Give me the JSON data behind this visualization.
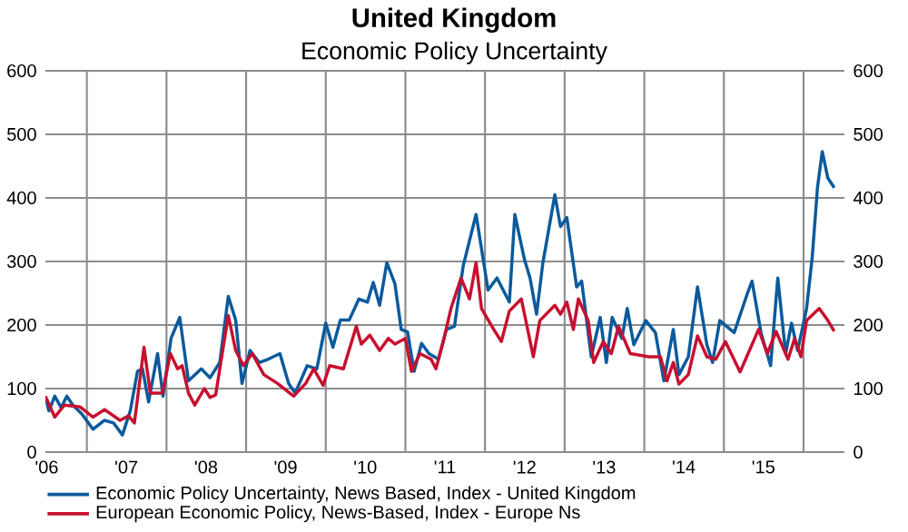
{
  "chart_data": {
    "type": "line",
    "title": "United Kingdom",
    "subtitle": "Economic Policy Uncertainty",
    "xlim": [
      "2006-06-25",
      "2016-07-07"
    ],
    "xticks": [
      {
        "value": "2006-07-01",
        "label": "'06"
      },
      {
        "value": "2007-07-01",
        "label": "'07"
      },
      {
        "value": "2008-07-01",
        "label": "'08"
      },
      {
        "value": "2009-07-01",
        "label": "'09"
      },
      {
        "value": "2010-07-01",
        "label": "'10"
      },
      {
        "value": "2011-07-01",
        "label": "'11"
      },
      {
        "value": "2012-07-01",
        "label": "'12"
      },
      {
        "value": "2013-07-01",
        "label": "'13"
      },
      {
        "value": "2014-07-01",
        "label": "'14"
      },
      {
        "value": "2015-07-01",
        "label": "'15"
      },
      {
        "value": "2007-01-01",
        "label": null
      },
      {
        "value": "2008-01-01",
        "label": null
      },
      {
        "value": "2009-01-01",
        "label": null
      },
      {
        "value": "2010-01-01",
        "label": null
      },
      {
        "value": "2011-01-01",
        "label": null
      },
      {
        "value": "2012-01-01",
        "label": null
      },
      {
        "value": "2013-01-01",
        "label": null
      },
      {
        "value": "2014-01-01",
        "label": null
      },
      {
        "value": "2015-01-01",
        "label": null
      },
      {
        "value": "2016-01-01",
        "label": null
      }
    ],
    "ylim": [
      0,
      600
    ],
    "yticks": [
      0,
      100,
      200,
      300,
      400,
      500,
      600
    ],
    "y2lim": [
      0,
      600
    ],
    "y2ticks": [
      0,
      100,
      200,
      300,
      400,
      500,
      600
    ],
    "grid": true,
    "legend": "bottom",
    "series": [
      {
        "name": "Economic Policy Uncertainty, News Based, Index - United Kingdom",
        "color": "#0a5a9c",
        "x": [
          "2006-06-25",
          "2006-07-11",
          "2006-08-07",
          "2006-09-05",
          "2006-10-01",
          "2006-10-29",
          "2006-12-09",
          "2007-01-29",
          "2007-03-23",
          "2007-05-03",
          "2007-06-13",
          "2007-07-19",
          "2007-08-21",
          "2007-09-13",
          "2007-10-11",
          "2007-11-21",
          "2007-12-16",
          "2008-01-22",
          "2008-03-02",
          "2008-04-11",
          "2008-06-09",
          "2008-07-19",
          "2008-09-02",
          "2008-10-11",
          "2008-11-14",
          "2008-12-13",
          "2009-01-19",
          "2009-03-02",
          "2009-04-11",
          "2009-06-05",
          "2009-07-15",
          "2009-08-14",
          "2009-10-08",
          "2009-11-21",
          "2010-01-01",
          "2010-02-03",
          "2010-03-09",
          "2010-04-19",
          "2010-06-02",
          "2010-07-11",
          "2010-08-07",
          "2010-09-05",
          "2010-10-08",
          "2010-11-14",
          "2010-12-13",
          "2011-01-11",
          "2011-02-10",
          "2011-03-16",
          "2011-04-19",
          "2011-06-02",
          "2011-07-08",
          "2011-08-14",
          "2011-09-23",
          "2011-11-21",
          "2012-01-15",
          "2012-02-25",
          "2012-04-22",
          "2012-05-17",
          "2012-07-01",
          "2012-07-26",
          "2012-08-25",
          "2012-09-23",
          "2012-11-17",
          "2012-12-13",
          "2013-01-11",
          "2013-02-25",
          "2013-03-20",
          "2013-05-03",
          "2013-06-13",
          "2013-07-11",
          "2013-08-07",
          "2013-09-20",
          "2013-10-15",
          "2013-11-14",
          "2014-01-08",
          "2014-02-21",
          "2014-04-01",
          "2014-05-14",
          "2014-06-09",
          "2014-07-22",
          "2014-09-02",
          "2014-10-15",
          "2014-11-10",
          "2014-12-13",
          "2015-02-17",
          "2015-04-19",
          "2015-05-10",
          "2015-06-20",
          "2015-08-03",
          "2015-09-05",
          "2015-10-11",
          "2015-11-07",
          "2015-12-05",
          "2016-01-15",
          "2016-02-10",
          "2016-03-05",
          "2016-03-27",
          "2016-04-22",
          "2016-05-21"
        ],
        "values": [
          88,
          65,
          88,
          70,
          88,
          74,
          60,
          36,
          50,
          46,
          27,
          65,
          127,
          131,
          79,
          155,
          88,
          179,
          212,
          112,
          131,
          117,
          141,
          245,
          208,
          108,
          160,
          141,
          146,
          155,
          108,
          93,
          136,
          131,
          203,
          165,
          208,
          208,
          241,
          236,
          267,
          231,
          298,
          265,
          193,
          189,
          127,
          171,
          155,
          146,
          193,
          198,
          293,
          374,
          255,
          274,
          236,
          374,
          302,
          274,
          217,
          298,
          405,
          355,
          369,
          260,
          269,
          150,
          212,
          141,
          212,
          179,
          226,
          169,
          207,
          188,
          112,
          193,
          122,
          150,
          260,
          169,
          141,
          207,
          188,
          250,
          269,
          188,
          136,
          274,
          155,
          203,
          160,
          226,
          307,
          416,
          473,
          431,
          416
        ]
      },
      {
        "name": "European Economic Policy, News-Based, Index - Europe Ns",
        "color": "#c8102e",
        "x": [
          "2006-06-25",
          "2006-08-07",
          "2006-09-20",
          "2006-12-02",
          "2007-01-29",
          "2007-03-23",
          "2007-06-02",
          "2007-07-11",
          "2007-08-07",
          "2007-09-20",
          "2007-10-19",
          "2007-12-13",
          "2008-01-19",
          "2008-02-21",
          "2008-03-13",
          "2008-04-11",
          "2008-05-10",
          "2008-06-23",
          "2008-07-19",
          "2008-08-14",
          "2008-10-11",
          "2008-11-14",
          "2008-12-20",
          "2009-01-29",
          "2009-03-23",
          "2009-05-25",
          "2009-08-07",
          "2009-10-01",
          "2009-11-07",
          "2009-12-20",
          "2010-01-19",
          "2010-03-23",
          "2010-05-21",
          "2010-06-13",
          "2010-07-22",
          "2010-09-05",
          "2010-10-15",
          "2010-11-14",
          "2011-01-01",
          "2011-01-29",
          "2011-03-09",
          "2011-04-29",
          "2011-05-21",
          "2011-06-27",
          "2011-07-29",
          "2011-09-13",
          "2011-10-22",
          "2011-11-21",
          "2011-12-16",
          "2012-02-10",
          "2012-03-16",
          "2012-04-22",
          "2012-06-16",
          "2012-08-10",
          "2012-09-09",
          "2012-11-17",
          "2012-12-13",
          "2013-01-11",
          "2013-02-10",
          "2013-03-05",
          "2013-04-19",
          "2013-05-14",
          "2013-06-27",
          "2013-08-03",
          "2013-09-05",
          "2013-10-29",
          "2014-01-22",
          "2014-03-16",
          "2014-04-15",
          "2014-05-14",
          "2014-06-09",
          "2014-07-22",
          "2014-09-02",
          "2014-10-15",
          "2014-11-25",
          "2015-01-08",
          "2015-03-16",
          "2015-06-09",
          "2015-07-19",
          "2015-08-28",
          "2015-10-22",
          "2015-11-21",
          "2015-12-20",
          "2016-01-15",
          "2016-03-13",
          "2016-04-22",
          "2016-05-21"
        ],
        "values": [
          88,
          55,
          74,
          71,
          55,
          67,
          50,
          57,
          46,
          165,
          93,
          93,
          155,
          131,
          136,
          93,
          74,
          100,
          86,
          90,
          215,
          160,
          136,
          155,
          122,
          108,
          88,
          108,
          131,
          105,
          136,
          131,
          198,
          170,
          184,
          160,
          179,
          170,
          179,
          127,
          155,
          146,
          131,
          179,
          226,
          274,
          241,
          298,
          226,
          193,
          174,
          222,
          241,
          150,
          207,
          231,
          217,
          236,
          193,
          241,
          207,
          141,
          174,
          155,
          198,
          155,
          150,
          150,
          112,
          141,
          107,
          122,
          183,
          150,
          146,
          174,
          126,
          193,
          155,
          190,
          146,
          179,
          150,
          207,
          226,
          207,
          190
        ]
      }
    ]
  }
}
